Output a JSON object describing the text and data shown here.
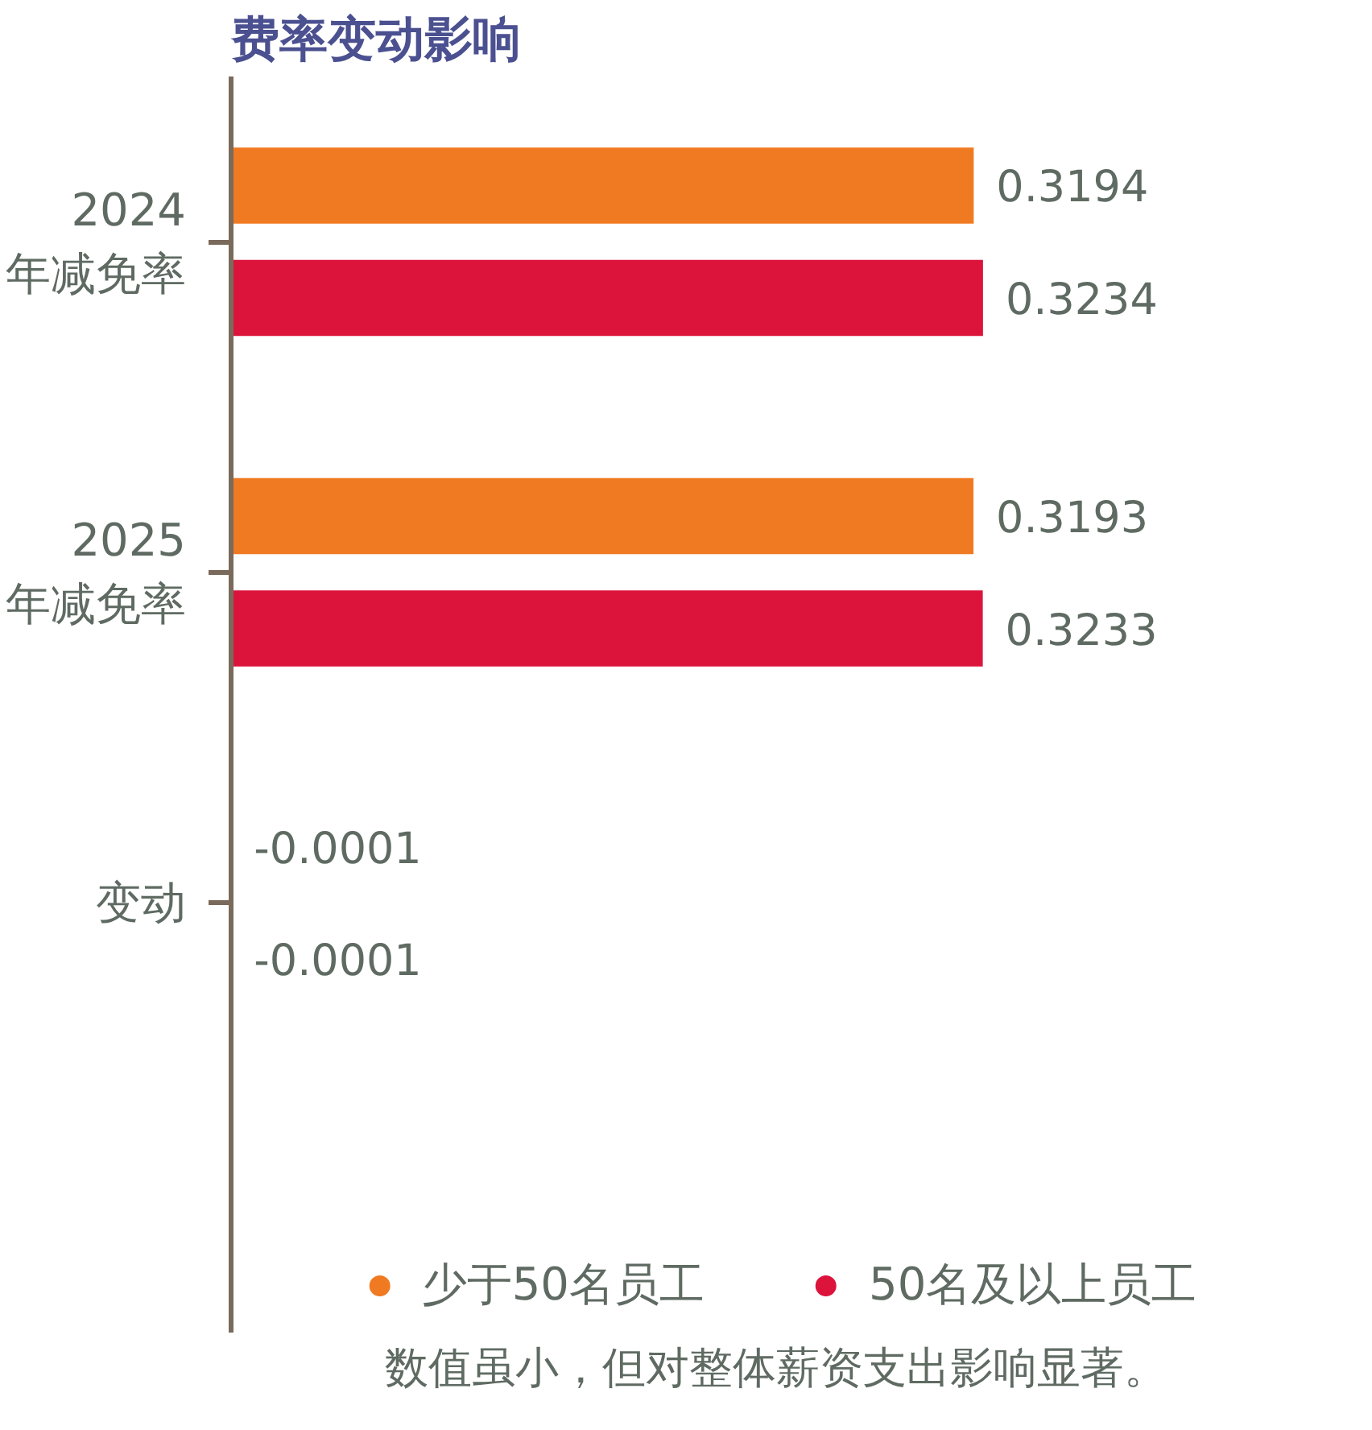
{
  "chart_data": {
    "type": "bar",
    "orientation": "horizontal",
    "title": "费率变动影响",
    "categories": [
      "2024\n年减免率",
      "2025\n年减免率",
      "变动"
    ],
    "series": [
      {
        "name": "少于50名员工",
        "color": "#f07a22",
        "values": [
          0.3194,
          0.3193,
          -0.0001
        ]
      },
      {
        "name": "50名及以上员工",
        "color": "#dc143c",
        "values": [
          0.3234,
          0.3233,
          -0.0001
        ]
      }
    ],
    "data_labels": true,
    "grid": false,
    "legend": "bottom",
    "annotations": [
      "数值虽小，但对整体薪资支出影响显著。"
    ]
  }
}
